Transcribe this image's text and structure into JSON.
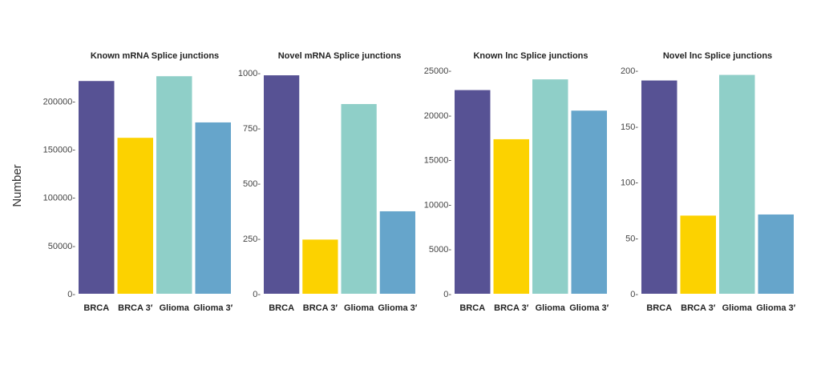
{
  "ylabel": "Number",
  "chart_data": [
    {
      "type": "bar",
      "title": "Known mRNA Splice junctions",
      "categories": [
        "BRCA",
        "BRCA 3′",
        "Glioma",
        "Glioma 3′"
      ],
      "values": [
        221000,
        162000,
        226000,
        178000
      ],
      "ylim": [
        0,
        232000
      ],
      "yticks": [
        0,
        50000,
        100000,
        150000,
        200000
      ],
      "ytick_labels": [
        "0-",
        "50000-",
        "100000-",
        "150000-",
        "200000-"
      ],
      "colors": [
        "#575294",
        "#fcd200",
        "#8fcfc8",
        "#66a5cb"
      ],
      "grid": false
    },
    {
      "type": "bar",
      "title": "Novel mRNA Splice junctions",
      "categories": [
        "BRCA",
        "BRCA 3′",
        "Glioma",
        "Glioma 3′"
      ],
      "values": [
        988,
        245,
        858,
        373
      ],
      "ylim": [
        0,
        1010
      ],
      "yticks": [
        0,
        250,
        500,
        750,
        1000
      ],
      "ytick_labels": [
        "0-",
        "250-",
        "500-",
        "750-",
        "1000-"
      ],
      "colors": [
        "#575294",
        "#fcd200",
        "#8fcfc8",
        "#66a5cb"
      ],
      "grid": false
    },
    {
      "type": "bar",
      "title": "Known lnc Splice junctions",
      "categories": [
        "BRCA",
        "BRCA 3′",
        "Glioma",
        "Glioma 3′"
      ],
      "values": [
        22800,
        17300,
        24000,
        20500
      ],
      "ylim": [
        0,
        25000
      ],
      "yticks": [
        0,
        5000,
        10000,
        15000,
        20000,
        25000
      ],
      "ytick_labels": [
        "0-",
        "5000-",
        "10000-",
        "15000-",
        "20000-",
        "25000-"
      ],
      "colors": [
        "#575294",
        "#fcd200",
        "#8fcfc8",
        "#66a5cb"
      ],
      "grid": false
    },
    {
      "type": "bar",
      "title": "Novel lnc Splice junctions",
      "categories": [
        "BRCA",
        "BRCA 3′",
        "Glioma",
        "Glioma 3′"
      ],
      "values": [
        191,
        70,
        196,
        71
      ],
      "ylim": [
        0,
        200
      ],
      "yticks": [
        0,
        50,
        100,
        150,
        200
      ],
      "ytick_labels": [
        "0-",
        "50-",
        "100-",
        "150-",
        "200-"
      ],
      "colors": [
        "#575294",
        "#fcd200",
        "#8fcfc8",
        "#66a5cb"
      ],
      "grid": false
    }
  ]
}
